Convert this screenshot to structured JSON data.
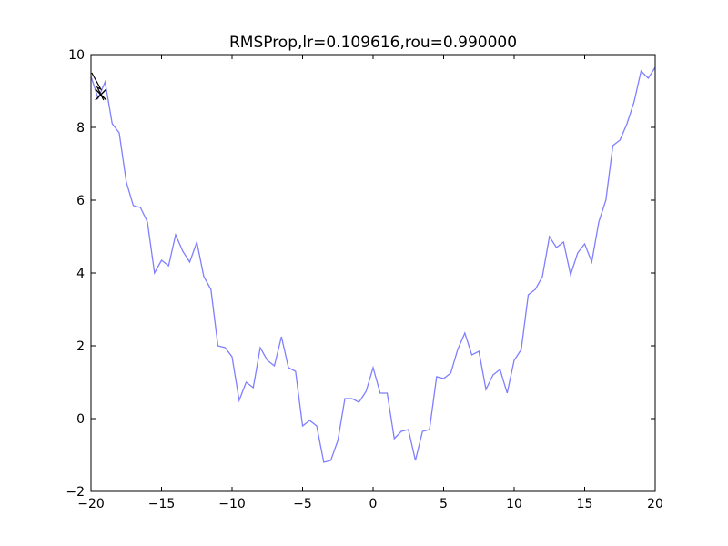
{
  "chart_data": {
    "type": "line",
    "title": "RMSProp,lr=0.109616,rou=0.990000",
    "xlabel": "",
    "ylabel": "",
    "xlim": [
      -20,
      20
    ],
    "ylim": [
      -2,
      10
    ],
    "xticks": [
      -20,
      -15,
      -10,
      -5,
      0,
      5,
      10,
      15,
      20
    ],
    "yticks": [
      -2,
      0,
      2,
      4,
      6,
      8,
      10
    ],
    "xtick_labels": [
      "−20",
      "−15",
      "−10",
      "−5",
      "0",
      "5",
      "10",
      "15",
      "20"
    ],
    "ytick_labels": [
      "−2",
      "0",
      "2",
      "4",
      "6",
      "8",
      "10"
    ],
    "grid": false,
    "curve_color": "#7f7fff",
    "path_color": "#000000",
    "series": [
      {
        "x": [
          -20,
          -19.5,
          -19,
          -18.5,
          -18,
          -17.5,
          -17,
          -16.5,
          -16,
          -15.5,
          -15,
          -14.5,
          -14,
          -13.5,
          -13,
          -12.5,
          -12,
          -11.5,
          -11,
          -10.5,
          -10,
          -9.5,
          -9,
          -8.5,
          -8,
          -7.5,
          -7,
          -6.5,
          -6,
          -5.5,
          -5,
          -4.5,
          -4,
          -3.5,
          -3,
          -2.5,
          -2,
          -1.5,
          -1,
          -0.5,
          0,
          0.5,
          1,
          1.5,
          2,
          2.5,
          3,
          3.5,
          4,
          4.5,
          5,
          5.5,
          6,
          6.5,
          7,
          7.5,
          8,
          8.5,
          9,
          9.5,
          10,
          10.5,
          11,
          11.5,
          12,
          12.5,
          13,
          13.5,
          14,
          14.5,
          15,
          15.5,
          16,
          16.5,
          17,
          17.5,
          18,
          18.5,
          19,
          19.5,
          20
        ],
        "y": [
          9.4,
          8.8,
          9.25,
          8.1,
          7.85,
          6.5,
          5.85,
          5.8,
          5.4,
          4.0,
          4.35,
          4.2,
          5.05,
          4.6,
          4.3,
          4.85,
          3.9,
          3.55,
          2.0,
          1.95,
          1.7,
          0.5,
          1.0,
          0.85,
          1.95,
          1.6,
          1.45,
          2.25,
          1.4,
          1.3,
          -0.2,
          -0.05,
          -0.2,
          -1.2,
          -1.15,
          -0.6,
          0.55,
          0.55,
          0.45,
          0.75,
          1.4,
          0.7,
          0.7,
          -0.55,
          -0.35,
          -0.3,
          -1.15,
          -0.35,
          -0.3,
          1.15,
          1.1,
          1.25,
          1.9,
          2.35,
          1.75,
          1.85,
          0.8,
          1.2,
          1.35,
          0.7,
          1.6,
          1.9,
          3.4,
          3.55,
          3.9,
          5.0,
          4.7,
          4.85,
          3.95,
          4.55,
          4.8,
          4.3,
          5.4,
          6.0,
          7.5,
          7.65,
          8.1,
          8.7,
          9.55,
          9.35,
          9.65
        ]
      },
      {
        "name": "",
        "x": [
          -19.95,
          -19.3,
          -19.55,
          -19.1,
          -19.3
        ],
        "y": [
          9.5,
          9.05,
          9.1,
          8.75,
          8.9
        ],
        "marker_last": "x"
      }
    ]
  }
}
